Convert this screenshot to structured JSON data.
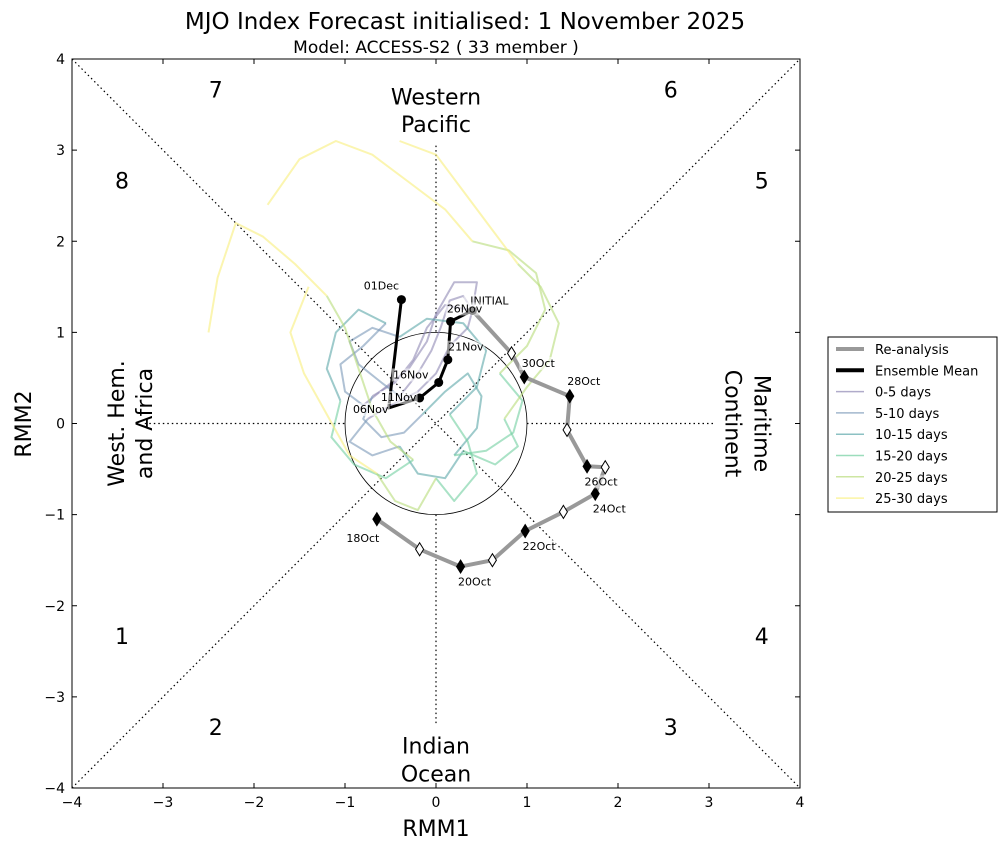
{
  "chart_data": {
    "type": "line",
    "title": "MJO Index Forecast initialised:  1  November 2025",
    "subtitle": "Model: ACCESS-S2 ( 33 member )",
    "xlabel": "RMM1",
    "ylabel": "RMM2",
    "xlim": [
      -4,
      4
    ],
    "ylim": [
      -4,
      4
    ],
    "xticks": [
      "−4",
      "−3",
      "−2",
      "−1",
      "0",
      "1",
      "2",
      "3",
      "4"
    ],
    "yticks": [
      "−4",
      "−3",
      "−2",
      "−1",
      "0",
      "1",
      "2",
      "3",
      "4"
    ],
    "amplitude_circle_radius": 1,
    "phase_labels": [
      {
        "text": "1",
        "x": -3.45,
        "y": -2.42
      },
      {
        "text": "2",
        "x": -2.42,
        "y": -3.42
      },
      {
        "text": "3",
        "x": 2.58,
        "y": -3.42
      },
      {
        "text": "4",
        "x": 3.58,
        "y": -2.42
      },
      {
        "text": "5",
        "x": 3.58,
        "y": 2.58
      },
      {
        "text": "6",
        "x": 2.58,
        "y": 3.58
      },
      {
        "text": "7",
        "x": -2.42,
        "y": 3.58
      },
      {
        "text": "8",
        "x": -3.45,
        "y": 2.58
      }
    ],
    "regions": {
      "top": [
        "Western",
        "Pacific"
      ],
      "bottom": [
        "Indian",
        "Ocean"
      ],
      "left": [
        "West. Hem.",
        "and Africa"
      ],
      "right": [
        "Maritime",
        "Continent"
      ]
    },
    "legend": {
      "position": "right",
      "entries": [
        {
          "label": "Re-analysis",
          "color": "#999999",
          "width": 4
        },
        {
          "label": "Ensemble Mean",
          "color": "#000000",
          "width": 4
        },
        {
          "label": "0-5 days",
          "color": "#8f88b4",
          "width": 1.5
        },
        {
          "label": "5-10 days",
          "color": "#7a98b8",
          "width": 1.5
        },
        {
          "label": "10-15 days",
          "color": "#5ba7a9",
          "width": 1.5
        },
        {
          "label": "15-20 days",
          "color": "#72cfa0",
          "width": 1.5
        },
        {
          "label": "20-25 days",
          "color": "#b8dc7a",
          "width": 1.5
        },
        {
          "label": "25-30 days",
          "color": "#f9ef7c",
          "width": 1.5
        }
      ]
    },
    "reanalysis": {
      "color": "#999999",
      "points": [
        {
          "x": -0.65,
          "y": -1.05,
          "label": "18Oct",
          "filled": true
        },
        {
          "x": -0.18,
          "y": -1.38,
          "label": "",
          "filled": false
        },
        {
          "x": 0.27,
          "y": -1.57,
          "label": "20Oct",
          "filled": true
        },
        {
          "x": 0.62,
          "y": -1.5,
          "label": "",
          "filled": false
        },
        {
          "x": 0.98,
          "y": -1.18,
          "label": "22Oct",
          "filled": true
        },
        {
          "x": 1.4,
          "y": -0.97,
          "label": "",
          "filled": false
        },
        {
          "x": 1.75,
          "y": -0.77,
          "label": "24Oct",
          "filled": true
        },
        {
          "x": 1.86,
          "y": -0.48,
          "label": "",
          "filled": false
        },
        {
          "x": 1.66,
          "y": -0.47,
          "label": "26Oct",
          "filled": true
        },
        {
          "x": 1.44,
          "y": -0.07,
          "label": "",
          "filled": false
        },
        {
          "x": 1.47,
          "y": 0.3,
          "label": "28Oct",
          "filled": true
        },
        {
          "x": 0.97,
          "y": 0.51,
          "label": "30Oct",
          "filled": true
        },
        {
          "x": 0.83,
          "y": 0.77,
          "label": "",
          "filled": false
        },
        {
          "x": 0.4,
          "y": 1.24,
          "label": "INITIAL",
          "filled": true
        }
      ]
    },
    "ensemble_mean": {
      "color": "#000000",
      "points": [
        {
          "x": 0.4,
          "y": 1.24,
          "label": ""
        },
        {
          "x": 0.16,
          "y": 1.12,
          "label": "26Nov"
        },
        {
          "x": 0.13,
          "y": 0.7,
          "label": "21Nov"
        },
        {
          "x": 0.03,
          "y": 0.45,
          "label": "16Nov"
        },
        {
          "x": -0.18,
          "y": 0.28,
          "label": "11Nov"
        },
        {
          "x": -0.52,
          "y": 0.17,
          "label": "06Nov"
        },
        {
          "x": -0.38,
          "y": 1.36,
          "label": "01Dec"
        }
      ],
      "marker_indices": [
        1,
        2,
        3,
        4,
        6
      ]
    },
    "member_spread": [
      {
        "name": "0-5 days",
        "color": "#8f88b4",
        "paths": [
          [
            [
              0.4,
              1.24
            ],
            [
              0.3,
              1.4
            ],
            [
              0.15,
              1.35
            ],
            [
              0.05,
              1.05
            ],
            [
              -0.05,
              0.8
            ],
            [
              -0.2,
              0.55
            ],
            [
              -0.4,
              0.3
            ]
          ],
          [
            [
              0.4,
              1.24
            ],
            [
              0.45,
              1.55
            ],
            [
              0.2,
              1.55
            ],
            [
              0.0,
              1.2
            ],
            [
              -0.1,
              0.9
            ],
            [
              -0.3,
              0.6
            ],
            [
              -0.55,
              0.4
            ],
            [
              -0.8,
              0.2
            ]
          ],
          [
            [
              0.4,
              1.24
            ],
            [
              0.1,
              1.3
            ],
            [
              -0.1,
              1.05
            ],
            [
              -0.25,
              0.7
            ],
            [
              -0.45,
              0.45
            ],
            [
              -0.7,
              0.3
            ]
          ],
          [
            [
              0.4,
              1.24
            ],
            [
              0.35,
              1.05
            ],
            [
              0.15,
              0.85
            ],
            [
              0.0,
              0.55
            ],
            [
              -0.2,
              0.35
            ],
            [
              -0.5,
              0.2
            ],
            [
              -0.75,
              0.05
            ]
          ]
        ]
      },
      {
        "name": "5-10 days",
        "color": "#7a98b8",
        "paths": [
          [
            [
              -0.4,
              0.3
            ],
            [
              -0.6,
              0.45
            ],
            [
              -0.85,
              0.65
            ],
            [
              -0.95,
              0.9
            ],
            [
              -0.7,
              1.05
            ],
            [
              -0.4,
              0.95
            ]
          ],
          [
            [
              -0.8,
              0.2
            ],
            [
              -1.0,
              0.35
            ],
            [
              -1.05,
              0.65
            ],
            [
              -0.8,
              0.85
            ],
            [
              -0.55,
              1.1
            ]
          ],
          [
            [
              -0.7,
              0.3
            ],
            [
              -0.8,
              0.05
            ],
            [
              -0.6,
              -0.15
            ],
            [
              -0.35,
              -0.1
            ],
            [
              -0.15,
              0.1
            ]
          ],
          [
            [
              -0.75,
              0.05
            ],
            [
              -0.95,
              -0.2
            ],
            [
              -0.7,
              -0.35
            ],
            [
              -0.4,
              -0.25
            ]
          ]
        ]
      },
      {
        "name": "10-15 days",
        "color": "#5ba7a9",
        "paths": [
          [
            [
              -0.4,
              0.95
            ],
            [
              -0.1,
              1.15
            ],
            [
              0.3,
              1.1
            ],
            [
              0.55,
              0.8
            ],
            [
              0.45,
              0.4
            ],
            [
              0.15,
              0.1
            ]
          ],
          [
            [
              -0.55,
              1.1
            ],
            [
              -0.85,
              1.25
            ],
            [
              -1.1,
              1.0
            ],
            [
              -1.2,
              0.6
            ],
            [
              -1.05,
              0.25
            ]
          ],
          [
            [
              -0.15,
              0.1
            ],
            [
              0.1,
              0.35
            ],
            [
              0.35,
              0.55
            ],
            [
              0.5,
              0.3
            ],
            [
              0.45,
              -0.05
            ],
            [
              0.2,
              -0.35
            ]
          ],
          [
            [
              -0.4,
              -0.25
            ],
            [
              -0.2,
              -0.55
            ],
            [
              0.1,
              -0.6
            ],
            [
              0.3,
              -0.3
            ]
          ]
        ]
      },
      {
        "name": "15-20 days",
        "color": "#72cfa0",
        "paths": [
          [
            [
              0.15,
              0.1
            ],
            [
              0.35,
              -0.2
            ],
            [
              0.45,
              -0.55
            ],
            [
              0.2,
              -0.85
            ],
            [
              0.0,
              -0.6
            ]
          ],
          [
            [
              -1.05,
              0.25
            ],
            [
              -1.15,
              -0.15
            ],
            [
              -0.9,
              -0.45
            ],
            [
              -0.55,
              -0.6
            ],
            [
              -0.25,
              -0.4
            ]
          ],
          [
            [
              0.2,
              -0.35
            ],
            [
              0.55,
              -0.3
            ],
            [
              0.85,
              -0.1
            ],
            [
              0.95,
              0.25
            ],
            [
              0.7,
              0.55
            ]
          ],
          [
            [
              0.3,
              -0.3
            ],
            [
              0.65,
              -0.45
            ],
            [
              0.9,
              -0.25
            ],
            [
              0.75,
              0.05
            ]
          ]
        ]
      },
      {
        "name": "20-25 days",
        "color": "#b8dc7a",
        "paths": [
          [
            [
              0.7,
              0.55
            ],
            [
              1.0,
              0.85
            ],
            [
              1.2,
              1.25
            ],
            [
              1.1,
              1.65
            ],
            [
              0.8,
              1.9
            ],
            [
              0.4,
              2.0
            ]
          ],
          [
            [
              -0.25,
              -0.4
            ],
            [
              -0.5,
              -0.2
            ],
            [
              -0.7,
              0.15
            ],
            [
              -0.85,
              0.6
            ],
            [
              -1.0,
              1.05
            ],
            [
              -1.2,
              1.4
            ]
          ],
          [
            [
              0.75,
              0.05
            ],
            [
              1.0,
              0.4
            ],
            [
              1.25,
              0.7
            ],
            [
              1.35,
              1.1
            ],
            [
              1.15,
              1.5
            ],
            [
              0.9,
              1.75
            ]
          ],
          [
            [
              0.0,
              -0.6
            ],
            [
              -0.2,
              -0.95
            ],
            [
              -0.45,
              -0.85
            ],
            [
              -0.65,
              -0.55
            ]
          ]
        ]
      },
      {
        "name": "25-30 days",
        "color": "#f9ef7c",
        "paths": [
          [
            [
              -1.2,
              1.4
            ],
            [
              -1.55,
              1.75
            ],
            [
              -1.9,
              2.05
            ],
            [
              -2.2,
              2.2
            ],
            [
              -2.4,
              1.6
            ],
            [
              -2.5,
              1.0
            ]
          ],
          [
            [
              0.4,
              2.0
            ],
            [
              0.1,
              2.35
            ],
            [
              -0.3,
              2.65
            ],
            [
              -0.7,
              2.95
            ],
            [
              -1.1,
              3.1
            ],
            [
              -1.5,
              2.9
            ],
            [
              -1.85,
              2.4
            ]
          ],
          [
            [
              0.9,
              1.75
            ],
            [
              0.6,
              2.15
            ],
            [
              0.3,
              2.55
            ],
            [
              0.0,
              2.95
            ],
            [
              -0.4,
              3.1
            ]
          ],
          [
            [
              -0.65,
              -0.55
            ],
            [
              -0.95,
              -0.35
            ],
            [
              -1.2,
              0.1
            ],
            [
              -1.45,
              0.55
            ],
            [
              -1.6,
              1.0
            ],
            [
              -1.4,
              1.5
            ]
          ]
        ]
      }
    ]
  }
}
